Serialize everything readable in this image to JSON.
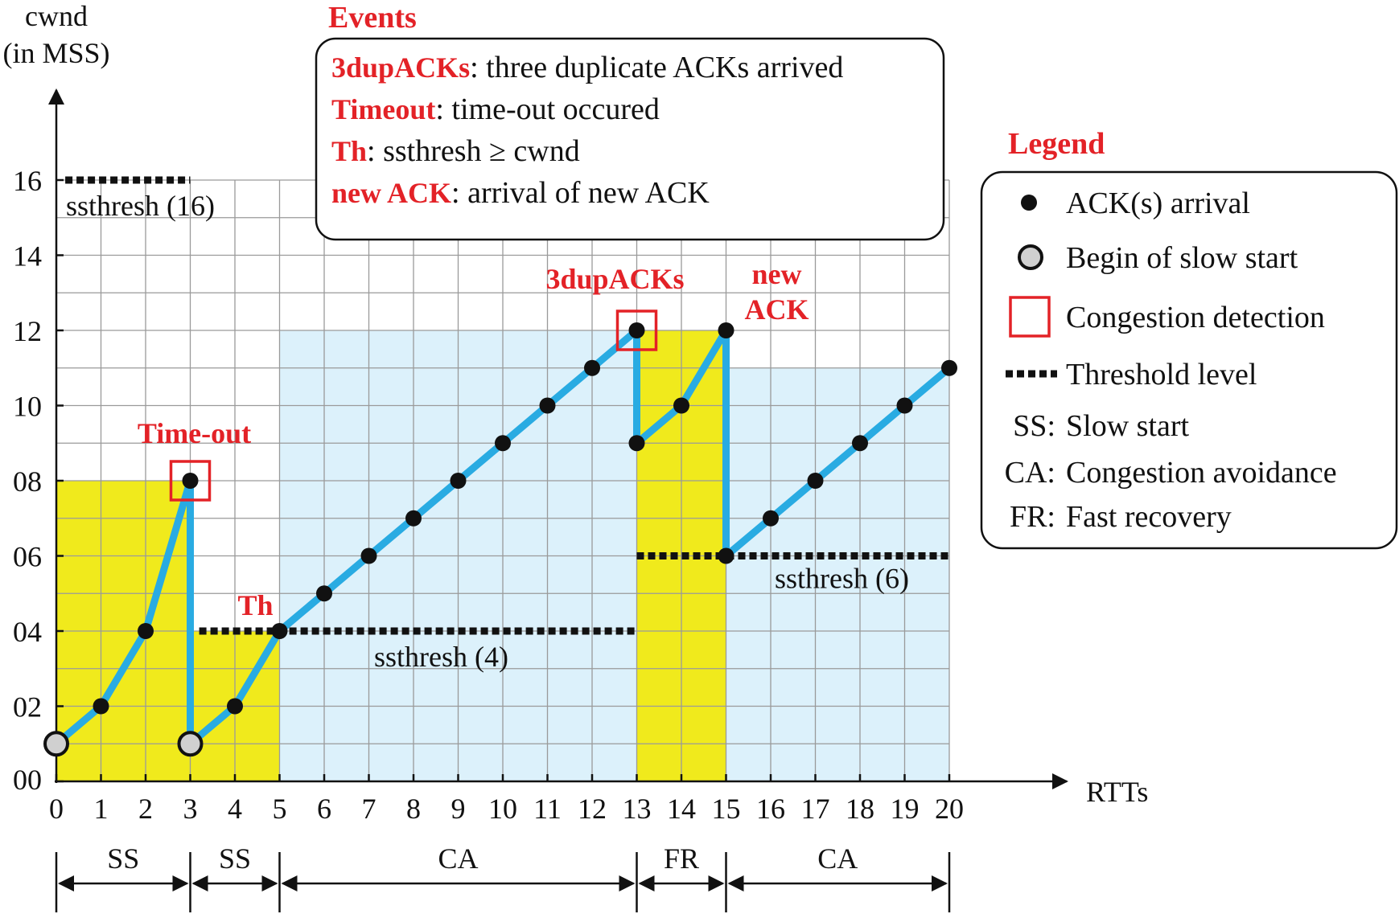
{
  "chart_data": {
    "type": "line",
    "xlabel": "RTTs",
    "ylabel_line1": "cwnd",
    "ylabel_line2": "(in MSS)",
    "xlim": [
      0,
      20
    ],
    "ylim": [
      0,
      16
    ],
    "grid": true,
    "x_ticks": [
      "0",
      "1",
      "2",
      "3",
      "4",
      "5",
      "6",
      "7",
      "8",
      "9",
      "10",
      "11",
      "12",
      "13",
      "14",
      "15",
      "16",
      "17",
      "18",
      "19",
      "20"
    ],
    "y_ticks": [
      {
        "value": 0,
        "label": "00"
      },
      {
        "value": 2,
        "label": "02"
      },
      {
        "value": 4,
        "label": "04"
      },
      {
        "value": 6,
        "label": "06"
      },
      {
        "value": 8,
        "label": "08"
      },
      {
        "value": 10,
        "label": "10"
      },
      {
        "value": 12,
        "label": "12"
      },
      {
        "value": 14,
        "label": "14"
      },
      {
        "value": 16,
        "label": "16"
      }
    ],
    "series": [
      {
        "points": [
          {
            "x": 0,
            "y": 1,
            "marker": "slow-start"
          },
          {
            "x": 1,
            "y": 2,
            "marker": "ack"
          },
          {
            "x": 2,
            "y": 4,
            "marker": "ack"
          },
          {
            "x": 3,
            "y": 8,
            "marker": "ack"
          },
          {
            "x": 3,
            "y": 1,
            "marker": "slow-start"
          },
          {
            "x": 4,
            "y": 2,
            "marker": "ack"
          },
          {
            "x": 5,
            "y": 4,
            "marker": "ack"
          },
          {
            "x": 6,
            "y": 5,
            "marker": "ack"
          },
          {
            "x": 7,
            "y": 6,
            "marker": "ack"
          },
          {
            "x": 8,
            "y": 7,
            "marker": "ack"
          },
          {
            "x": 9,
            "y": 8,
            "marker": "ack"
          },
          {
            "x": 10,
            "y": 9,
            "marker": "ack"
          },
          {
            "x": 11,
            "y": 10,
            "marker": "ack"
          },
          {
            "x": 12,
            "y": 11,
            "marker": "ack"
          },
          {
            "x": 13,
            "y": 12,
            "marker": "ack"
          },
          {
            "x": 13,
            "y": 9,
            "marker": "ack"
          },
          {
            "x": 14,
            "y": 10,
            "marker": "ack"
          },
          {
            "x": 15,
            "y": 12,
            "marker": "ack"
          },
          {
            "x": 15,
            "y": 6,
            "marker": "ack"
          },
          {
            "x": 16,
            "y": 7,
            "marker": "ack"
          },
          {
            "x": 17,
            "y": 8,
            "marker": "ack"
          },
          {
            "x": 18,
            "y": 9,
            "marker": "ack"
          },
          {
            "x": 19,
            "y": 10,
            "marker": "ack"
          },
          {
            "x": 20,
            "y": 11,
            "marker": "ack"
          }
        ]
      }
    ],
    "regions": [
      {
        "kind": "slow-start",
        "x0": 0,
        "x1": 3,
        "ymax": 8
      },
      {
        "kind": "slow-start",
        "x0": 3,
        "x1": 5,
        "ymax": 4
      },
      {
        "kind": "congestion-avoidance",
        "x0": 5,
        "x1": 13,
        "ymax": 12
      },
      {
        "kind": "fast-recovery",
        "x0": 13,
        "x1": 15,
        "ymax": 12
      },
      {
        "kind": "congestion-avoidance",
        "x0": 15,
        "x1": 20,
        "ymax": 11
      }
    ],
    "thresholds": [
      {
        "x0": 0.2,
        "x1": 3,
        "y": 16,
        "label": "ssthresh (16)"
      },
      {
        "x0": 3.2,
        "x1": 13,
        "y": 4,
        "label": "ssthresh (4)"
      },
      {
        "x0": 13,
        "x1": 20,
        "y": 6,
        "label": "ssthresh (6)"
      }
    ],
    "congestion_boxes": [
      {
        "x": 3,
        "y": 8
      },
      {
        "x": 13,
        "y": 12
      }
    ],
    "annotations": [
      {
        "text": "Time-out",
        "x": 3,
        "y": 8
      },
      {
        "text": "Th",
        "x": 5,
        "y": 4
      },
      {
        "text": "3dupACKs",
        "x": 13,
        "y": 12
      },
      {
        "text_line1": "new",
        "text_line2": "ACK",
        "x": 15,
        "y": 12
      }
    ],
    "phases": [
      {
        "label": "SS",
        "x0": 0,
        "x1": 3
      },
      {
        "label": "SS",
        "x0": 3,
        "x1": 5
      },
      {
        "label": "CA",
        "x0": 5,
        "x1": 13
      },
      {
        "label": "FR",
        "x0": 13,
        "x1": 15
      },
      {
        "label": "CA",
        "x0": 15,
        "x1": 20
      }
    ],
    "colors": {
      "line": "#29abe2",
      "slow_start_fill": "#f0ea1c",
      "avoidance_fill": "#dcf1fb",
      "event_red": "#e32227",
      "grid": "#9a9a9a"
    }
  },
  "events": {
    "title": "Events",
    "items": [
      {
        "term": "3dupACKs",
        "desc": ": three duplicate ACKs arrived"
      },
      {
        "term": "Timeout",
        "desc": ": time-out occured"
      },
      {
        "term": "Th",
        "desc": ": ssthresh ≥  cwnd"
      },
      {
        "term": "new ACK",
        "desc": ": arrival of new ACK"
      }
    ]
  },
  "legend": {
    "title": "Legend",
    "items": [
      {
        "icon": "ack-dot",
        "label": "ACK(s) arrival"
      },
      {
        "icon": "slow-start-circle",
        "label": "Begin of slow start"
      },
      {
        "icon": "congestion-square",
        "label": "Congestion detection"
      },
      {
        "icon": "threshold-dashes",
        "label": "Threshold level"
      }
    ],
    "abbreviations": [
      {
        "abbr": "SS:",
        "label": "Slow start"
      },
      {
        "abbr": "CA:",
        "label": "Congestion avoidance"
      },
      {
        "abbr": "FR:",
        "label": "Fast recovery"
      }
    ]
  }
}
